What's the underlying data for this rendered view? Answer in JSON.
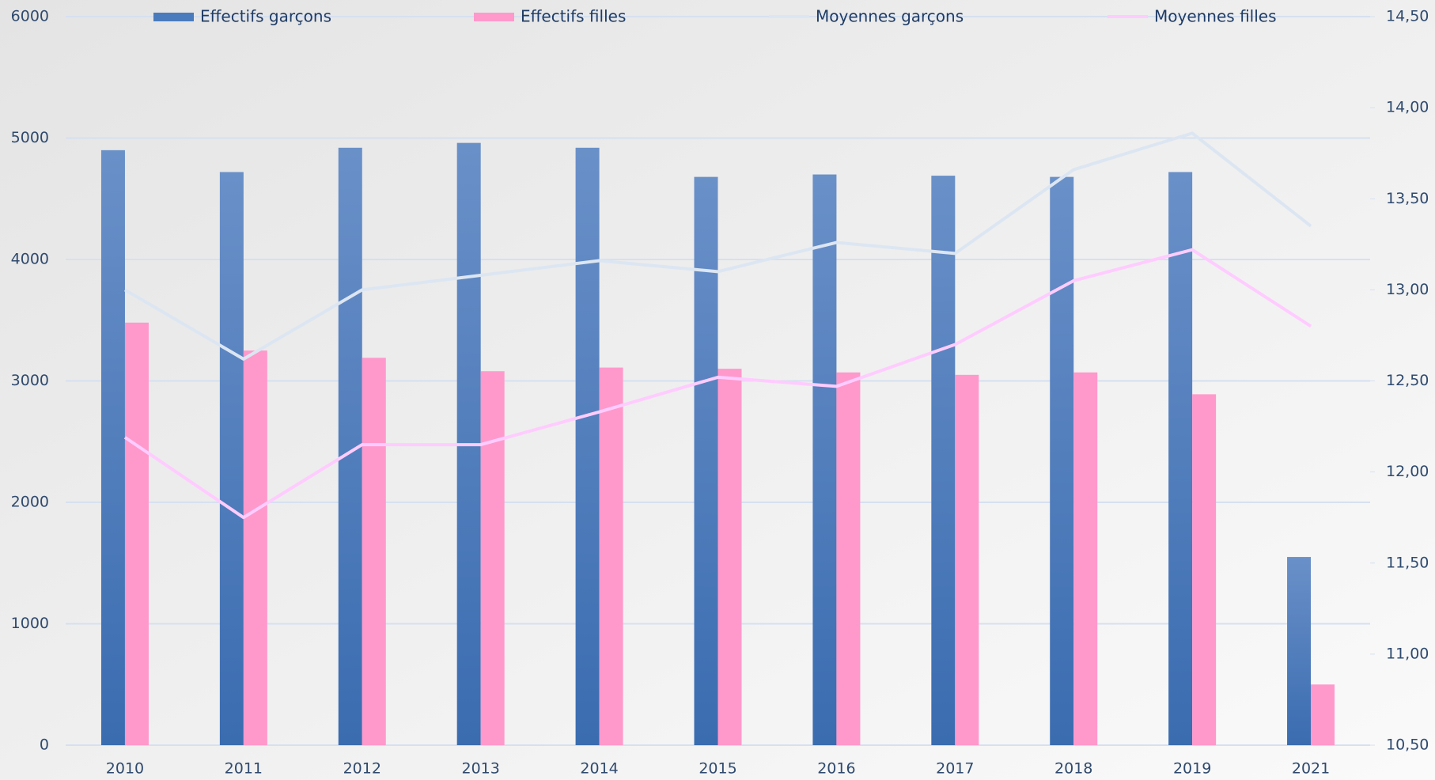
{
  "chart_data": {
    "type": "bar",
    "categories": [
      "2010",
      "2011",
      "2012",
      "2013",
      "2014",
      "2015",
      "2016",
      "2017",
      "2018",
      "2019",
      "2021"
    ],
    "series": [
      {
        "name": "Effectifs garçons",
        "type": "bar",
        "color": "#4a7bbd",
        "values": [
          4900,
          4720,
          4920,
          4960,
          4920,
          4680,
          4700,
          4690,
          4680,
          4720,
          1550
        ]
      },
      {
        "name": "Effectifs filles",
        "type": "bar",
        "color": "#ff99cc",
        "values": [
          3480,
          3250,
          3190,
          3080,
          3110,
          3100,
          3070,
          3050,
          3070,
          2890,
          500
        ]
      },
      {
        "name": "Moyennes garçons",
        "type": "line",
        "axis": "y2",
        "color": "#dce6f2",
        "values": [
          13.0,
          12.62,
          13.0,
          13.08,
          13.16,
          13.1,
          13.26,
          13.2,
          13.66,
          13.86,
          13.35
        ]
      },
      {
        "name": "Moyennes filles",
        "type": "line",
        "axis": "y2",
        "color": "#ffccff",
        "values": [
          12.19,
          11.75,
          12.15,
          12.15,
          12.33,
          12.52,
          12.47,
          12.7,
          13.05,
          13.22,
          12.8
        ]
      }
    ],
    "ylim": [
      0,
      6000
    ],
    "yticks": [
      0,
      1000,
      2000,
      3000,
      4000,
      5000,
      6000
    ],
    "y2lim": [
      10.5,
      14.5
    ],
    "y2ticks": [
      {
        "value": 10.5,
        "label": "10,50"
      },
      {
        "value": 11,
        "label": "11,00"
      },
      {
        "value": 11.5,
        "label": "11,50"
      },
      {
        "value": 12,
        "label": "12,00"
      },
      {
        "value": 12.5,
        "label": "12,50"
      },
      {
        "value": 13,
        "label": "13,00"
      },
      {
        "value": 13.5,
        "label": "13,50"
      },
      {
        "value": 14,
        "label": "14,00"
      },
      {
        "value": 14.5,
        "label": "14,50"
      }
    ],
    "grid": true,
    "legend": "top"
  }
}
